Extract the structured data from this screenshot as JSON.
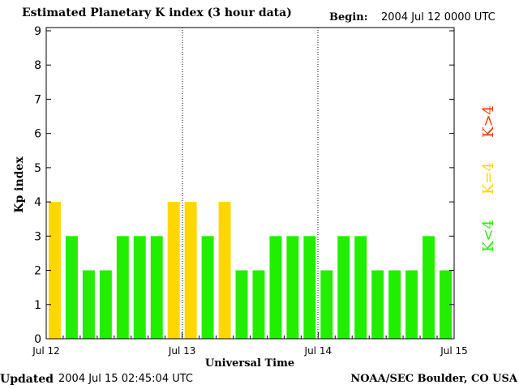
{
  "header": {
    "title": "Estimated Planetary K index (3 hour data)",
    "begin_label": "Begin:",
    "begin_value": "2004 Jul 12 0000 UTC"
  },
  "footer": {
    "updated_label": "Updated",
    "updated_value": "2004 Jul 15 02:45:04 UTC",
    "credit": "NOAA/SEC Boulder, CO USA"
  },
  "legend": {
    "high": {
      "label": "K>4",
      "color": "#ff3300"
    },
    "equal": {
      "label": "K=4",
      "color": "#ffd700"
    },
    "low": {
      "label": "K<4",
      "color": "#22ee00"
    }
  },
  "chart_data": {
    "type": "bar",
    "title": "Estimated Planetary K index (3 hour data)",
    "xlabel": "Universal Time",
    "ylabel": "Kp index",
    "ylim": [
      0,
      9
    ],
    "yticks": [
      "0",
      "1",
      "2",
      "3",
      "4",
      "5",
      "6",
      "7",
      "8",
      "9"
    ],
    "xticks": [
      "Jul 12",
      "Jul 13",
      "Jul 14",
      "Jul 15"
    ],
    "interval_hours": 3,
    "values": [
      4,
      3,
      2,
      2,
      3,
      3,
      3,
      4,
      4,
      3,
      4,
      2,
      2,
      3,
      3,
      3,
      2,
      3,
      3,
      2,
      2,
      2,
      3,
      2
    ],
    "colors": {
      "lt4": "#22ee00",
      "eq4": "#ffd700",
      "gt4": "#ff3300"
    },
    "day_separators": "dotted",
    "grid": false
  }
}
